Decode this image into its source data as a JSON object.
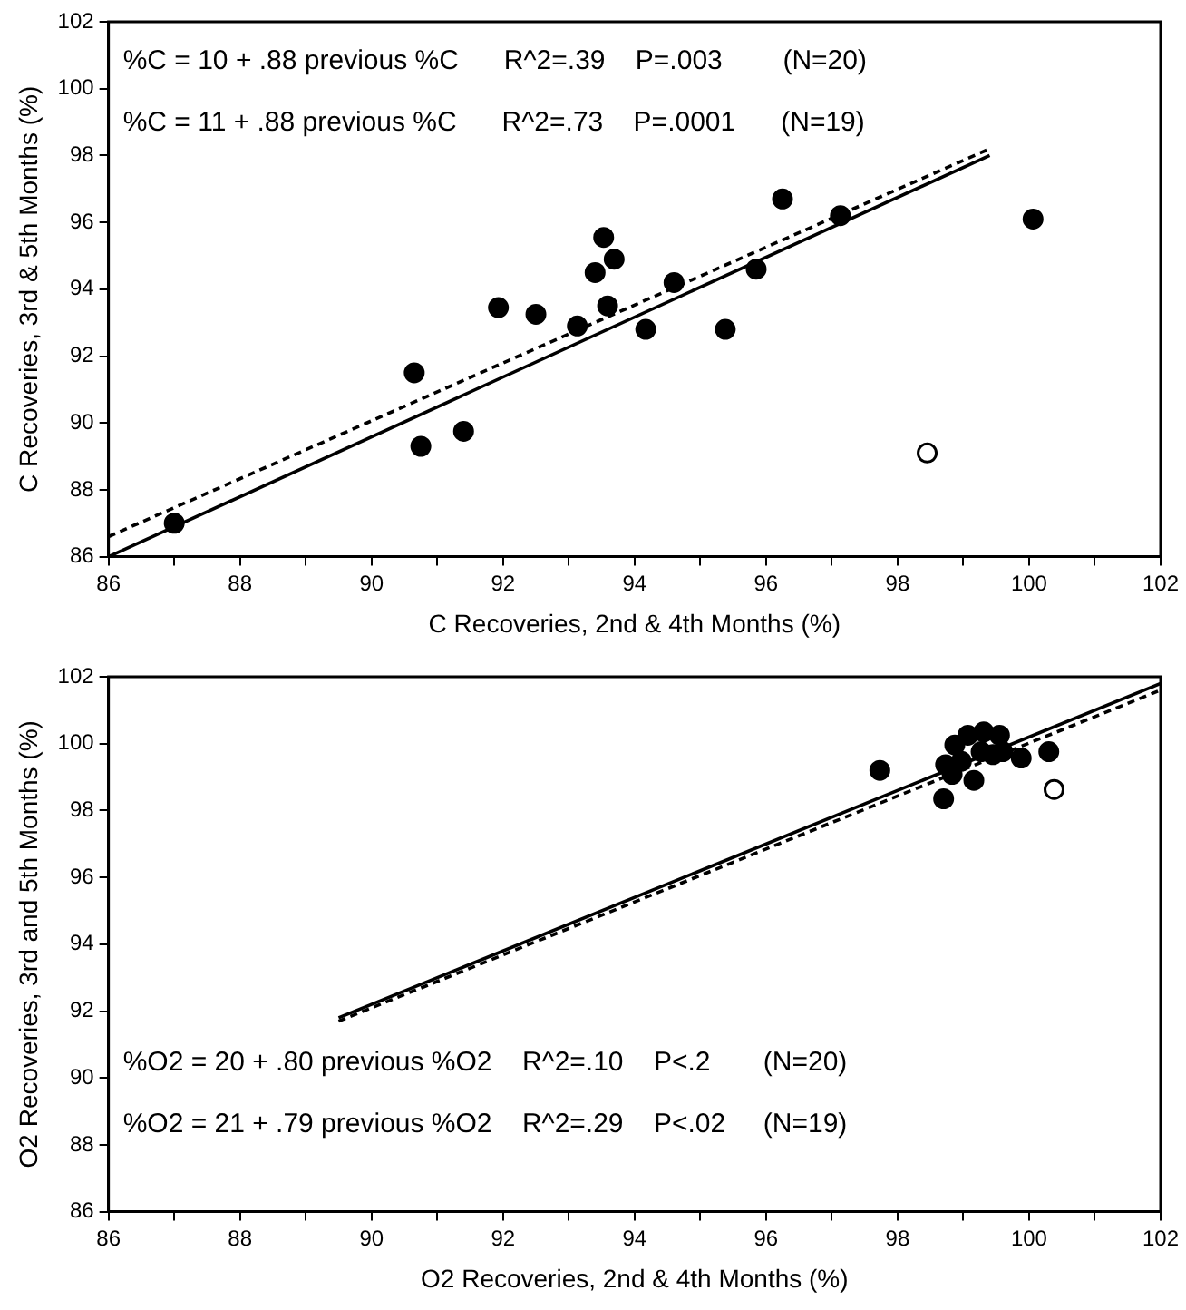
{
  "chart_data": [
    {
      "type": "scatter",
      "xlabel": "C Recoveries, 2nd & 4th Months (%)",
      "ylabel": "C Recoveries, 3rd & 5th Months (%)",
      "xlim": [
        86,
        102
      ],
      "ylim": [
        86,
        102
      ],
      "xticks": [
        86,
        {
          "value": 87,
          "label": null
        },
        88,
        {
          "value": 89,
          "label": null
        },
        90,
        {
          "value": 91,
          "label": null
        },
        92,
        {
          "value": 93,
          "label": null
        },
        94,
        {
          "value": 95,
          "label": null
        },
        96,
        {
          "value": 97,
          "label": null
        },
        98,
        {
          "value": 99,
          "label": null
        },
        100,
        {
          "value": 101,
          "label": null
        },
        102
      ],
      "yticks": [
        86,
        88,
        90,
        92,
        94,
        96,
        98,
        100,
        102
      ],
      "grid": false,
      "legend": false,
      "annotations": [
        "%C = 10 + .88 previous %C      R^2=.39    P=.003        (N=20)",
        "%C = 11 + .88 previous %C      R^2=.73    P=.0001      (N=19)"
      ],
      "series": [
        {
          "type": "scatter",
          "color": "#000000",
          "marker": "circle",
          "x": [
            87.0,
            90.65,
            90.75,
            91.4,
            91.93,
            92.5,
            93.13,
            93.4,
            93.53,
            93.59,
            93.69,
            94.17,
            94.6,
            95.38,
            95.85,
            96.25,
            97.13,
            100.06
          ],
          "values": [
            87.0,
            91.5,
            89.3,
            89.75,
            93.45,
            93.25,
            92.9,
            94.5,
            95.55,
            93.5,
            94.9,
            92.8,
            94.2,
            92.8,
            94.6,
            96.7,
            96.2,
            96.1
          ]
        },
        {
          "type": "scatter",
          "color": "#ffffff",
          "marker": "circle",
          "x": [
            98.45
          ],
          "values": [
            89.1
          ]
        },
        {
          "type": "line",
          "color": "#000000",
          "marker": "none",
          "line_style": "dashed",
          "x": [
            86,
            99.4
          ],
          "values": [
            86.6,
            98.2
          ]
        },
        {
          "type": "line",
          "color": "#000000",
          "marker": "none",
          "line_style": "solid",
          "x": [
            86,
            99.4
          ],
          "values": [
            86.0,
            98.0
          ]
        }
      ]
    },
    {
      "type": "scatter",
      "xlabel": "O2 Recoveries, 2nd & 4th Months (%)",
      "ylabel": "O2 Recoveries, 3rd and 5th Months (%)",
      "xlim": [
        86,
        102
      ],
      "ylim": [
        86,
        102
      ],
      "xticks": [
        86,
        {
          "value": 87,
          "label": null
        },
        88,
        {
          "value": 89,
          "label": null
        },
        90,
        {
          "value": 91,
          "label": null
        },
        92,
        {
          "value": 93,
          "label": null
        },
        94,
        {
          "value": 95,
          "label": null
        },
        96,
        {
          "value": 97,
          "label": null
        },
        98,
        {
          "value": 99,
          "label": null
        },
        100,
        {
          "value": 101,
          "label": null
        },
        102
      ],
      "yticks": [
        86,
        88,
        90,
        92,
        94,
        96,
        98,
        100,
        102
      ],
      "grid": false,
      "legend": false,
      "annotations": [
        "%O2 = 20 + .80 previous %O2    R^2=.10    P<.2       (N=20)",
        "%O2 = 21 + .79 previous %O2    R^2=.29    P<.02     (N=19)"
      ],
      "series": [
        {
          "type": "scatter",
          "color": "#000000",
          "marker": "circle",
          "x": [
            97.73,
            98.7,
            99.16,
            99.88,
            100.3,
            98.87,
            99.07,
            99.31,
            99.6,
            99.27,
            98.97,
            98.83,
            99.45,
            99.55,
            98.73
          ],
          "values": [
            99.2,
            98.35,
            98.9,
            99.57,
            99.76,
            99.96,
            100.25,
            100.35,
            99.76,
            99.76,
            99.47,
            99.08,
            99.67,
            100.25,
            99.37
          ]
        },
        {
          "type": "scatter",
          "color": "#ffffff",
          "marker": "circle",
          "x": [
            100.38
          ],
          "values": [
            98.63
          ]
        },
        {
          "type": "line",
          "color": "#000000",
          "marker": "none",
          "line_style": "dashed",
          "x": [
            89.5,
            102
          ],
          "values": [
            91.7,
            101.6
          ]
        },
        {
          "type": "line",
          "color": "#000000",
          "marker": "none",
          "line_style": "solid",
          "x": [
            89.5,
            102
          ],
          "values": [
            91.8,
            101.8
          ]
        }
      ]
    }
  ]
}
